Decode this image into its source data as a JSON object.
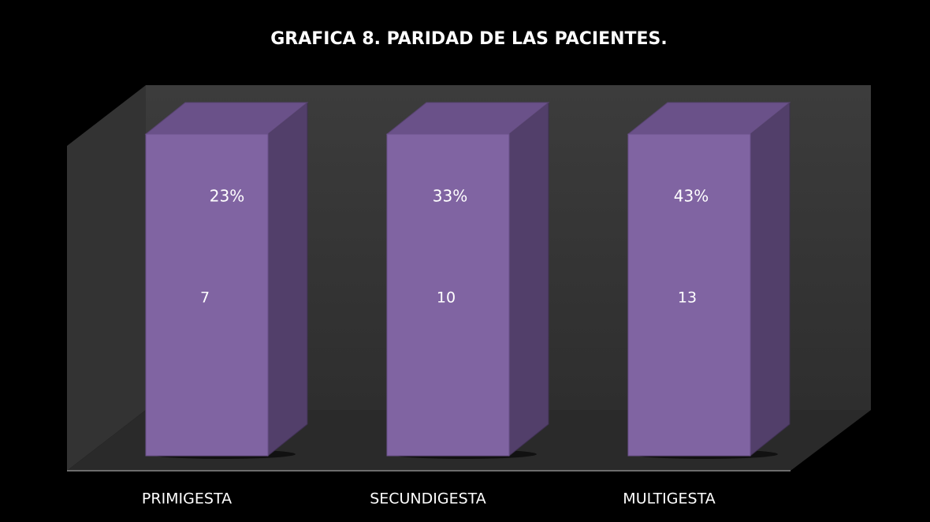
{
  "chart_data": {
    "type": "bar",
    "title": "GRAFICA 8. PARIDAD DE LAS PACIENTES.",
    "categories": [
      "PRIMIGESTA",
      "SECUNDIGESTA",
      "MULTIGESTA"
    ],
    "values": [
      7,
      10,
      13
    ],
    "percent_values": [
      23,
      33,
      43
    ],
    "percent_labels": [
      "23%",
      "33%",
      "43%"
    ],
    "color": "#8064a2"
  }
}
